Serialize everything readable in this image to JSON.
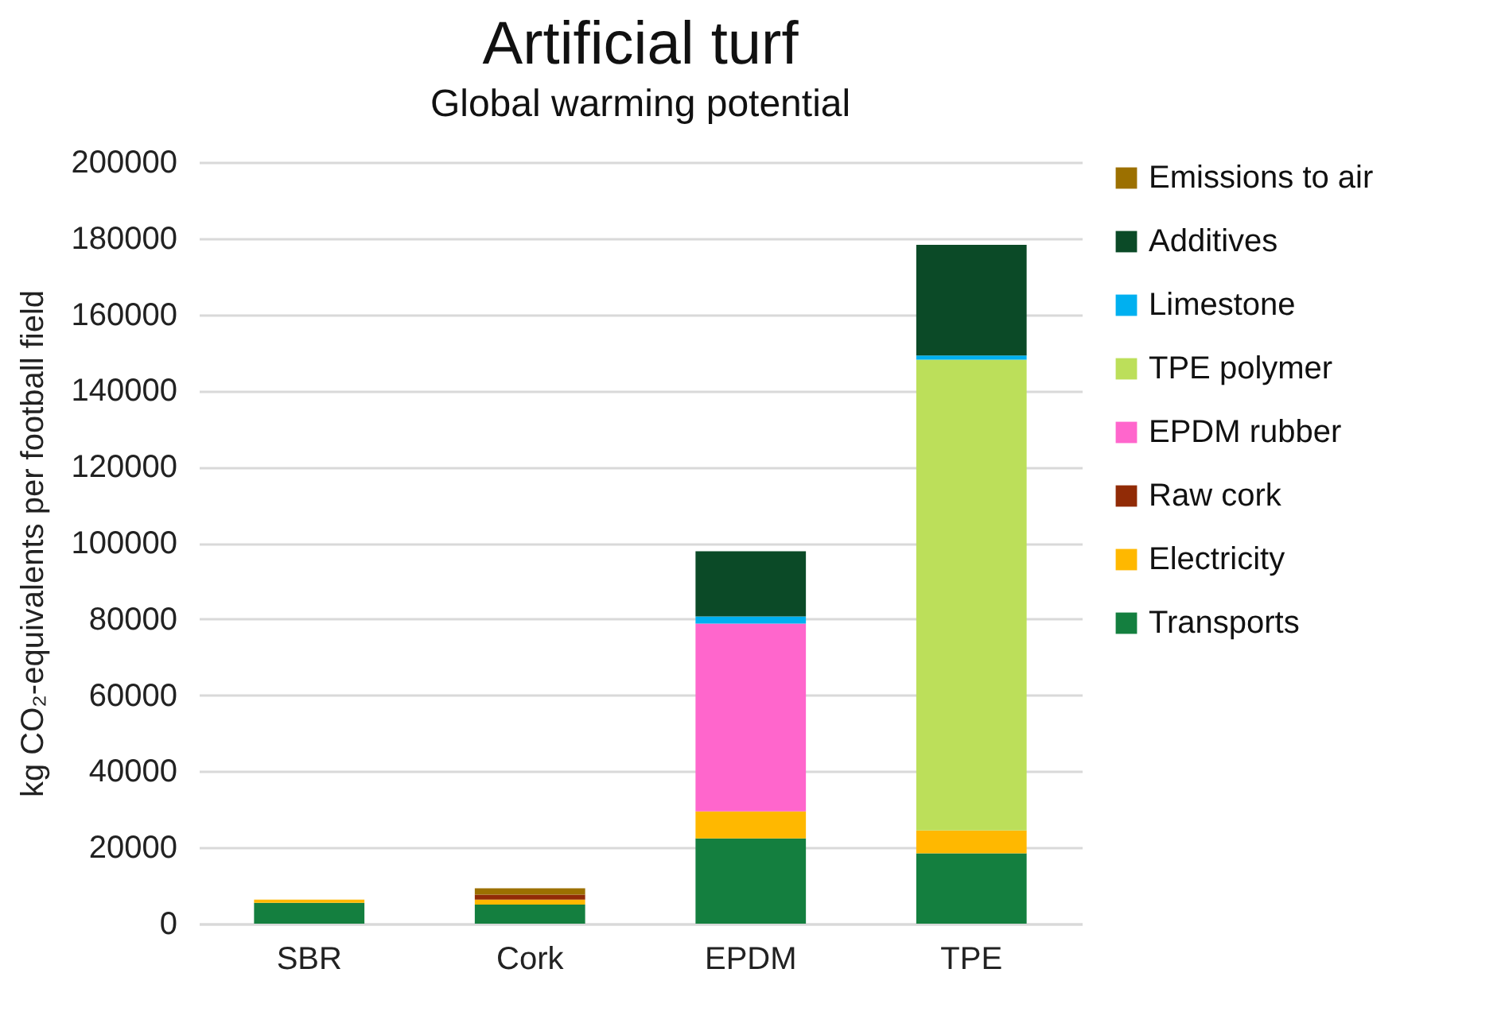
{
  "chart_data": {
    "type": "bar",
    "title": "Artificial turf",
    "subtitle": "Global warming potential",
    "ylabel": "kg CO₂-equivalents per football field",
    "categories": [
      "SBR",
      "Cork",
      "EPDM",
      "TPE"
    ],
    "stacked": true,
    "ylim": [
      0,
      200000
    ],
    "yticks": [
      0,
      20000,
      40000,
      60000,
      80000,
      100000,
      120000,
      140000,
      160000,
      180000,
      200000
    ],
    "grid": "y",
    "legend": "right",
    "series": [
      {
        "name": "Transports",
        "color": "#147f3f",
        "values": [
          5500,
          5000,
          22400,
          18500
        ]
      },
      {
        "name": "Electricity",
        "color": "#ffb800",
        "values": [
          800,
          1300,
          7100,
          6000
        ]
      },
      {
        "name": "Raw cork",
        "color": "#912b06",
        "values": [
          null,
          1300,
          null,
          null
        ]
      },
      {
        "name": "EPDM rubber",
        "color": "#ff66cc",
        "values": [
          null,
          null,
          49300,
          null
        ]
      },
      {
        "name": "TPE polymer",
        "color": "#bcdf5a",
        "values": [
          null,
          null,
          null,
          123600
        ]
      },
      {
        "name": "Limestone",
        "color": "#00b0f0",
        "values": [
          null,
          null,
          1900,
          1100
        ]
      },
      {
        "name": "Additives",
        "color": "#0b4a27",
        "values": [
          null,
          null,
          17100,
          29100
        ]
      },
      {
        "name": "Emissions to air",
        "color": "#9c7000",
        "values": [
          null,
          1700,
          null,
          null
        ]
      }
    ]
  }
}
